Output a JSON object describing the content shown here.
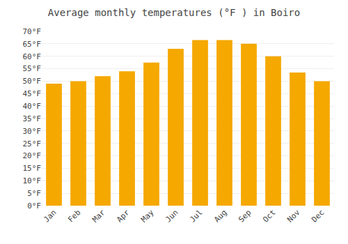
{
  "chart_data": {
    "type": "bar",
    "title": "Average monthly temperatures (°F ) in Boiro",
    "categories": [
      "Jan",
      "Feb",
      "Mar",
      "Apr",
      "May",
      "Jun",
      "Jul",
      "Aug",
      "Sep",
      "Oct",
      "Nov",
      "Dec"
    ],
    "values": [
      49,
      50,
      52,
      54,
      57.5,
      63,
      66.5,
      66.5,
      65,
      60,
      53.5,
      50
    ],
    "color": "#F5A800",
    "ylim": [
      0,
      70
    ],
    "yticks": [
      {
        "value": 0,
        "label": "0°F"
      },
      {
        "value": 5,
        "label": "5°F"
      },
      {
        "value": 10,
        "label": "10°F"
      },
      {
        "value": 15,
        "label": "15°F"
      },
      {
        "value": 20,
        "label": "20°F"
      },
      {
        "value": 25,
        "label": "25°F"
      },
      {
        "value": 30,
        "label": "30°F"
      },
      {
        "value": 35,
        "label": "35°F"
      },
      {
        "value": 40,
        "label": "40°F"
      },
      {
        "value": 45,
        "label": "45°F"
      },
      {
        "value": 50,
        "label": "50°F"
      },
      {
        "value": 55,
        "label": "55°F"
      },
      {
        "value": 60,
        "label": "60°F"
      },
      {
        "value": 65,
        "label": "65°F"
      },
      {
        "value": 70,
        "label": "70°F"
      }
    ],
    "grid": true
  }
}
